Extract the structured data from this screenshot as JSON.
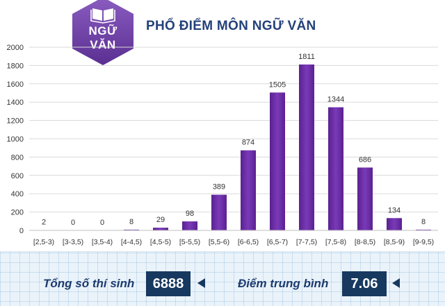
{
  "badge": {
    "line1": "NGỮ",
    "line2": "VĂN",
    "icon": "open-book-icon"
  },
  "title": "PHỔ ĐIỂM MÔN NGỮ VĂN",
  "colors": {
    "bar": "#5a2190",
    "bar_light": "#7a3ab8",
    "badge": "#6a3fa0",
    "title": "#24417a",
    "box": "#17385f"
  },
  "chart_data": {
    "type": "bar",
    "categories": [
      "[2,5-3)",
      "[3-3,5)",
      "[3,5-4)",
      "[4-4,5)",
      "[4,5-5)",
      "[5-5,5)",
      "[5,5-6)",
      "[6-6,5)",
      "[6,5-7)",
      "[7-7,5)",
      "[7,5-8)",
      "[8-8,5)",
      "[8,5-9)",
      "[9-9,5)"
    ],
    "values": [
      2,
      0,
      0,
      8,
      29,
      98,
      389,
      874,
      1505,
      1811,
      1344,
      686,
      134,
      8
    ],
    "yticks": [
      0,
      200,
      400,
      600,
      800,
      1000,
      1200,
      1400,
      1600,
      1800,
      2000
    ],
    "ylim": [
      0,
      2000
    ],
    "grid": true,
    "title": "PHỔ ĐIỂM MÔN NGỮ VĂN",
    "xlabel": "",
    "ylabel": ""
  },
  "summary": {
    "total_label": "Tổng số thí sinh",
    "total_value": "6888",
    "avg_label": "Điểm trung bình",
    "avg_value": "7.06"
  }
}
